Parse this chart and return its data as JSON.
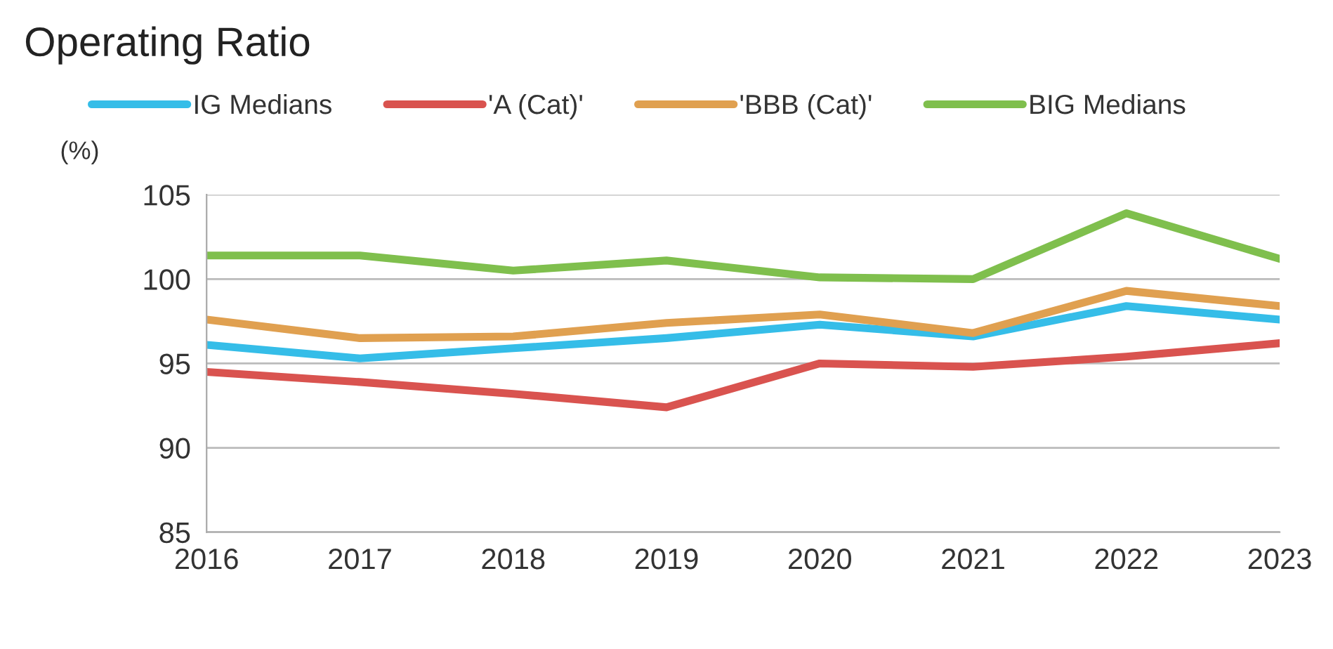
{
  "chart_data": {
    "type": "line",
    "title": "Operating Ratio",
    "ylabel": "(%)",
    "x": [
      2016,
      2017,
      2018,
      2019,
      2020,
      2021,
      2022,
      2023
    ],
    "series": [
      {
        "name": "IG Medians",
        "color": "#35bde8",
        "values": [
          96.1,
          95.3,
          95.9,
          96.5,
          97.3,
          96.6,
          98.4,
          97.6
        ]
      },
      {
        "name": "'A (Cat)'",
        "color": "#d9534f",
        "values": [
          94.5,
          93.9,
          93.2,
          92.4,
          95.0,
          94.8,
          95.4,
          96.2
        ]
      },
      {
        "name": "'BBB (Cat)'",
        "color": "#e0a050",
        "values": [
          97.6,
          96.5,
          96.6,
          97.4,
          97.9,
          96.8,
          99.3,
          98.4
        ]
      },
      {
        "name": "BIG Medians",
        "color": "#7fbf4d",
        "values": [
          101.4,
          101.4,
          100.5,
          101.1,
          100.1,
          100.0,
          103.9,
          101.2
        ]
      }
    ],
    "xlim": [
      2016,
      2023
    ],
    "xticks": [
      2016,
      2017,
      2018,
      2019,
      2020,
      2021,
      2022,
      2023
    ],
    "ylim": [
      85,
      105
    ],
    "yticks": [
      85,
      90,
      95,
      100,
      105
    ],
    "grid": "y",
    "legend": "top",
    "marker": "none",
    "line_style": "solid"
  }
}
